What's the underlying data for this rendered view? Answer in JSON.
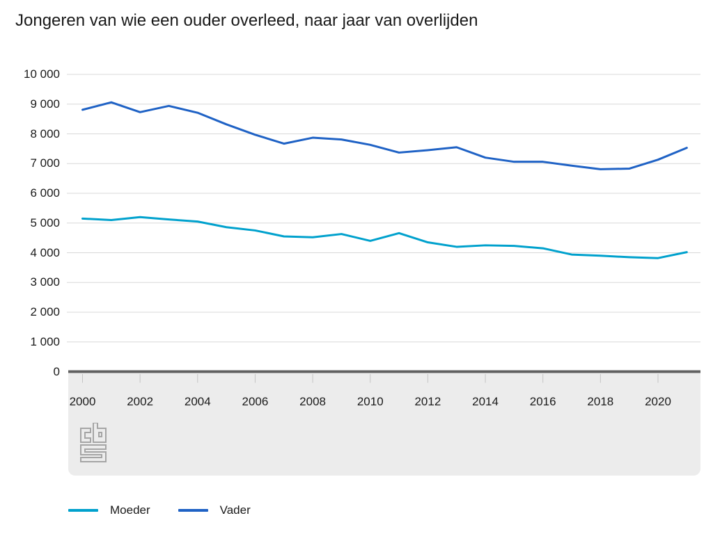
{
  "title": "Jongeren van wie een ouder overleed, naar jaar van overlijden",
  "chart_data": {
    "type": "line",
    "x": [
      2000,
      2001,
      2002,
      2003,
      2004,
      2005,
      2006,
      2007,
      2008,
      2009,
      2010,
      2011,
      2012,
      2013,
      2014,
      2015,
      2016,
      2017,
      2018,
      2019,
      2020,
      2021
    ],
    "series": [
      {
        "name": "Moeder",
        "color": "#00a1cd",
        "values": [
          5150,
          5100,
          5200,
          5120,
          5050,
          4860,
          4750,
          4550,
          4520,
          4630,
          4400,
          4660,
          4350,
          4200,
          4250,
          4230,
          4150,
          3940,
          3900,
          3850,
          3820,
          4020
        ]
      },
      {
        "name": "Vader",
        "color": "#1f62c5",
        "values": [
          8810,
          9060,
          8730,
          8940,
          8710,
          8320,
          7970,
          7670,
          7870,
          7810,
          7630,
          7370,
          7450,
          7550,
          7200,
          7060,
          7060,
          6930,
          6810,
          6830,
          7130,
          7530
        ]
      }
    ],
    "ylim": [
      0,
      10000
    ],
    "y_ticks": [
      {
        "v": 10000,
        "label": "10 000"
      },
      {
        "v": 9000,
        "label": "9 000"
      },
      {
        "v": 8000,
        "label": "8 000"
      },
      {
        "v": 7000,
        "label": "7 000"
      },
      {
        "v": 6000,
        "label": "6 000"
      },
      {
        "v": 5000,
        "label": "5 000"
      },
      {
        "v": 4000,
        "label": "4 000"
      },
      {
        "v": 3000,
        "label": "3 000"
      },
      {
        "v": 2000,
        "label": "2 000"
      },
      {
        "v": 1000,
        "label": "1 000"
      },
      {
        "v": 0,
        "label": "0"
      }
    ],
    "x_ticks": [
      {
        "v": 2000,
        "label": "2000"
      },
      {
        "v": 2002,
        "label": "2002"
      },
      {
        "v": 2004,
        "label": "2004"
      },
      {
        "v": 2006,
        "label": "2006"
      },
      {
        "v": 2008,
        "label": "2008"
      },
      {
        "v": 2010,
        "label": "2010"
      },
      {
        "v": 2012,
        "label": "2012"
      },
      {
        "v": 2014,
        "label": "2014"
      },
      {
        "v": 2016,
        "label": "2016"
      },
      {
        "v": 2018,
        "label": "2018"
      },
      {
        "v": 2020,
        "label": "2020"
      }
    ],
    "grid": "horizontal",
    "legend_position": "bottom-left"
  },
  "branding": {
    "logo": "cbs-logo"
  },
  "colors": {
    "grid": "#d8d8d8",
    "axis": "#606060",
    "band": "#ececec",
    "tick": "#c4c4c4",
    "text": "#1a1a1a"
  }
}
